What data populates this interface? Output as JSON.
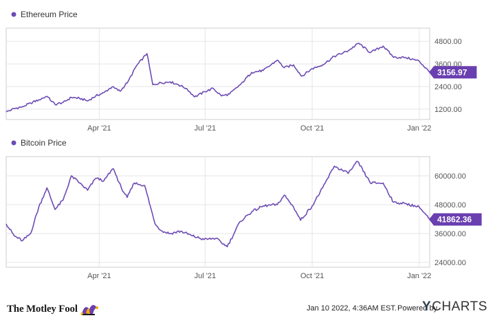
{
  "colors": {
    "line": "#6c4bb4",
    "badge": "#6a3fb0",
    "grid": "#e5e5e5",
    "border": "#cccccc"
  },
  "chart_data": [
    {
      "type": "line",
      "legend": "Ethereum Price",
      "x_ticks": [
        "Apr '21",
        "Jul '21",
        "Oct '21",
        "Jan '22"
      ],
      "y_ticks": [
        "1200.00",
        "2400.00",
        "3600.00",
        "4800.00"
      ],
      "ylim": [
        650,
        5500
      ],
      "last_value_label": "3156.97",
      "series": [
        {
          "name": "Ethereum Price",
          "x": [
            "2021-01-11",
            "2021-01-18",
            "2021-01-25",
            "2021-02-01",
            "2021-02-08",
            "2021-02-15",
            "2021-02-22",
            "2021-03-01",
            "2021-03-08",
            "2021-03-15",
            "2021-03-22",
            "2021-03-29",
            "2021-04-05",
            "2021-04-12",
            "2021-04-19",
            "2021-04-26",
            "2021-05-03",
            "2021-05-12",
            "2021-05-17",
            "2021-05-24",
            "2021-06-01",
            "2021-06-08",
            "2021-06-15",
            "2021-06-22",
            "2021-07-01",
            "2021-07-08",
            "2021-07-15",
            "2021-07-22",
            "2021-08-01",
            "2021-08-10",
            "2021-08-20",
            "2021-09-01",
            "2021-09-07",
            "2021-09-15",
            "2021-09-22",
            "2021-10-01",
            "2021-10-10",
            "2021-10-20",
            "2021-11-01",
            "2021-11-10",
            "2021-11-20",
            "2021-12-01",
            "2021-12-10",
            "2021-12-20",
            "2022-01-01",
            "2022-01-10"
          ],
          "values": [
            1050,
            1230,
            1330,
            1520,
            1700,
            1880,
            1450,
            1560,
            1820,
            1780,
            1640,
            1900,
            2080,
            2380,
            2150,
            2700,
            3500,
            4150,
            2500,
            2600,
            2650,
            2500,
            2300,
            1850,
            2130,
            2300,
            1900,
            2000,
            2550,
            3150,
            3250,
            3800,
            3400,
            3550,
            2950,
            3350,
            3550,
            4000,
            4300,
            4700,
            4200,
            4550,
            3950,
            3950,
            3750,
            3157
          ]
        }
      ]
    },
    {
      "type": "line",
      "legend": "Bitcoin Price",
      "x_ticks": [
        "Apr '21",
        "Jul '21",
        "Oct '21",
        "Jan '22"
      ],
      "y_ticks": [
        "24000.00",
        "36000.00",
        "48000.00",
        "60000.00"
      ],
      "ylim": [
        22000,
        68000
      ],
      "last_value_label": "41862.36",
      "series": [
        {
          "name": "Bitcoin Price",
          "x": [
            "2021-01-11",
            "2021-01-18",
            "2021-01-25",
            "2021-02-01",
            "2021-02-08",
            "2021-02-15",
            "2021-02-22",
            "2021-03-01",
            "2021-03-08",
            "2021-03-15",
            "2021-03-22",
            "2021-03-29",
            "2021-04-05",
            "2021-04-13",
            "2021-04-20",
            "2021-04-25",
            "2021-05-01",
            "2021-05-10",
            "2021-05-19",
            "2021-05-25",
            "2021-06-01",
            "2021-06-10",
            "2021-06-20",
            "2021-06-30",
            "2021-07-10",
            "2021-07-20",
            "2021-07-31",
            "2021-08-10",
            "2021-08-20",
            "2021-09-01",
            "2021-09-07",
            "2021-09-15",
            "2021-09-21",
            "2021-10-01",
            "2021-10-10",
            "2021-10-20",
            "2021-11-01",
            "2021-11-09",
            "2021-11-20",
            "2021-12-01",
            "2021-12-10",
            "2021-12-20",
            "2022-01-01",
            "2022-01-10"
          ],
          "values": [
            40000,
            35000,
            33000,
            36000,
            47000,
            55000,
            46000,
            50000,
            60000,
            57000,
            54000,
            59000,
            58000,
            63000,
            55000,
            51000,
            57000,
            56000,
            40000,
            37000,
            36000,
            37000,
            35000,
            33500,
            34000,
            30500,
            41000,
            45000,
            47500,
            48000,
            52000,
            47000,
            41500,
            47500,
            55000,
            64000,
            61000,
            66000,
            57000,
            57000,
            49000,
            48500,
            47000,
            41862
          ]
        }
      ]
    }
  ],
  "footer": {
    "brand": "The Motley Fool",
    "timestamp": "Jan 10 2022, 4:36AM EST.",
    "powered_by": "Powered by",
    "ycharts": "CHARTS"
  }
}
